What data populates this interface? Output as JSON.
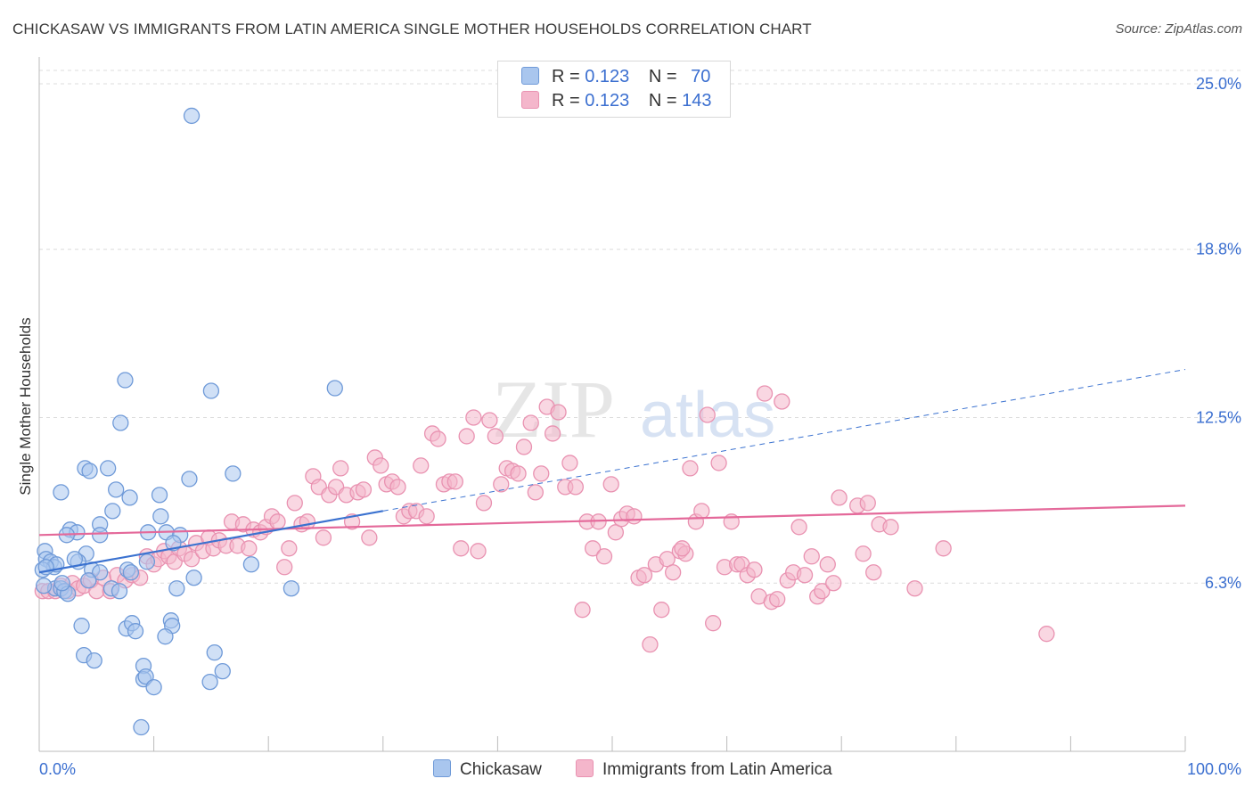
{
  "header": {
    "title": "CHICKASAW VS IMMIGRANTS FROM LATIN AMERICA SINGLE MOTHER HOUSEHOLDS CORRELATION CHART",
    "source": "Source: ZipAtlas.com"
  },
  "legend": {
    "series": [
      {
        "r_label": "R =",
        "r_value": "0.123",
        "n_label": "N =",
        "n_value": "70"
      },
      {
        "r_label": "R =",
        "r_value": "0.123",
        "n_label": "N =",
        "n_value": "143"
      }
    ]
  },
  "bottom_legend": {
    "items": [
      "Chickasaw",
      "Immigrants from Latin America"
    ]
  },
  "watermark": {
    "zip": "ZIP",
    "atlas": "atlas"
  },
  "colors": {
    "blue_fill": "#a9c6ee",
    "blue_stroke": "#6f9ad8",
    "blue_line": "#3b72d0",
    "pink_fill": "#f4b6cb",
    "pink_stroke": "#e992b1",
    "pink_line": "#e4699a",
    "axis_label": "#3b6fd0",
    "grid": "#dcdcdc"
  },
  "chart_data": {
    "type": "scatter",
    "title": "CHICKASAW VS IMMIGRANTS FROM LATIN AMERICA SINGLE MOTHER HOUSEHOLDS CORRELATION CHART",
    "xlabel": "",
    "ylabel": "Single Mother Households",
    "xlim": [
      0,
      100
    ],
    "ylim": [
      0,
      26
    ],
    "x_tick_labels": [
      "0.0%",
      "100.0%"
    ],
    "y_ticks": [
      6.3,
      12.5,
      18.8,
      25.0
    ],
    "y_tick_labels": [
      "6.3%",
      "12.5%",
      "18.8%",
      "25.0%"
    ],
    "series": [
      {
        "name": "Chickasaw",
        "r": 0.123,
        "n": 70,
        "trend": {
          "x0": 0,
          "y0": 6.7,
          "x1": 30,
          "y1": 9.0,
          "x_dash_end": 100,
          "y_dash_end": 14.3
        },
        "points": [
          [
            13.3,
            23.8
          ],
          [
            7.5,
            13.9
          ],
          [
            15.0,
            13.5
          ],
          [
            25.8,
            13.6
          ],
          [
            7.1,
            12.3
          ],
          [
            4.0,
            10.6
          ],
          [
            6.0,
            10.6
          ],
          [
            4.4,
            10.5
          ],
          [
            13.1,
            10.2
          ],
          [
            16.9,
            10.4
          ],
          [
            1.9,
            9.7
          ],
          [
            6.7,
            9.8
          ],
          [
            7.9,
            9.5
          ],
          [
            10.5,
            9.6
          ],
          [
            6.4,
            9.0
          ],
          [
            10.6,
            8.8
          ],
          [
            2.7,
            8.3
          ],
          [
            3.3,
            8.2
          ],
          [
            5.3,
            8.5
          ],
          [
            9.5,
            8.2
          ],
          [
            11.1,
            8.2
          ],
          [
            12.3,
            8.1
          ],
          [
            2.4,
            8.1
          ],
          [
            5.3,
            8.1
          ],
          [
            0.5,
            7.5
          ],
          [
            4.1,
            7.4
          ],
          [
            9.4,
            7.1
          ],
          [
            11.7,
            7.8
          ],
          [
            18.5,
            7.0
          ],
          [
            0.6,
            7.2
          ],
          [
            1.0,
            7.1
          ],
          [
            1.3,
            6.9
          ],
          [
            1.5,
            7.0
          ],
          [
            3.4,
            7.1
          ],
          [
            3.1,
            7.2
          ],
          [
            0.3,
            6.8
          ],
          [
            0.6,
            6.9
          ],
          [
            4.6,
            6.8
          ],
          [
            5.3,
            6.7
          ],
          [
            7.7,
            6.8
          ],
          [
            8.0,
            6.7
          ],
          [
            4.3,
            6.4
          ],
          [
            13.5,
            6.5
          ],
          [
            1.4,
            6.1
          ],
          [
            1.9,
            6.1
          ],
          [
            2.2,
            6.0
          ],
          [
            2.5,
            5.9
          ],
          [
            6.3,
            6.1
          ],
          [
            7.0,
            6.0
          ],
          [
            12.0,
            6.1
          ],
          [
            22.0,
            6.1
          ],
          [
            3.7,
            4.7
          ],
          [
            7.6,
            4.6
          ],
          [
            8.1,
            4.8
          ],
          [
            8.4,
            4.5
          ],
          [
            11.5,
            4.9
          ],
          [
            11.6,
            4.7
          ],
          [
            11.0,
            4.3
          ],
          [
            3.9,
            3.6
          ],
          [
            4.8,
            3.4
          ],
          [
            15.3,
            3.7
          ],
          [
            9.1,
            3.2
          ],
          [
            9.1,
            2.7
          ],
          [
            9.3,
            2.8
          ],
          [
            16.0,
            3.0
          ],
          [
            14.9,
            2.6
          ],
          [
            10.0,
            2.4
          ],
          [
            8.9,
            0.9
          ],
          [
            0.4,
            6.2
          ],
          [
            2.0,
            6.3
          ]
        ]
      },
      {
        "name": "Immigrants from Latin America",
        "r": 0.123,
        "n": 143,
        "trend": {
          "x0": 0,
          "y0": 8.1,
          "x1": 100,
          "y1": 9.2
        },
        "points": [
          [
            0.3,
            6.0
          ],
          [
            0.8,
            6.0
          ],
          [
            1.4,
            6.0
          ],
          [
            1.9,
            6.2
          ],
          [
            2.5,
            6.0
          ],
          [
            2.9,
            6.3
          ],
          [
            3.4,
            6.1
          ],
          [
            3.9,
            6.2
          ],
          [
            4.5,
            6.4
          ],
          [
            5.0,
            6.0
          ],
          [
            5.6,
            6.5
          ],
          [
            6.2,
            6.0
          ],
          [
            6.8,
            6.6
          ],
          [
            7.5,
            6.4
          ],
          [
            8.1,
            6.6
          ],
          [
            8.8,
            6.5
          ],
          [
            9.4,
            7.3
          ],
          [
            10.0,
            7.0
          ],
          [
            10.4,
            7.2
          ],
          [
            10.9,
            7.5
          ],
          [
            11.3,
            7.3
          ],
          [
            11.8,
            7.1
          ],
          [
            12.2,
            7.6
          ],
          [
            12.7,
            7.4
          ],
          [
            13.3,
            7.2
          ],
          [
            13.7,
            7.8
          ],
          [
            14.3,
            7.5
          ],
          [
            14.8,
            8.0
          ],
          [
            15.2,
            7.6
          ],
          [
            15.7,
            7.9
          ],
          [
            16.3,
            7.7
          ],
          [
            16.8,
            8.6
          ],
          [
            17.3,
            7.7
          ],
          [
            17.8,
            8.5
          ],
          [
            18.3,
            7.6
          ],
          [
            18.7,
            8.3
          ],
          [
            19.3,
            8.2
          ],
          [
            19.8,
            8.4
          ],
          [
            20.3,
            8.8
          ],
          [
            20.8,
            8.6
          ],
          [
            21.4,
            6.9
          ],
          [
            21.8,
            7.6
          ],
          [
            22.3,
            9.3
          ],
          [
            22.9,
            8.5
          ],
          [
            23.4,
            8.6
          ],
          [
            23.9,
            10.3
          ],
          [
            24.4,
            9.9
          ],
          [
            24.8,
            8.0
          ],
          [
            25.3,
            9.6
          ],
          [
            25.9,
            9.9
          ],
          [
            26.3,
            10.6
          ],
          [
            26.8,
            9.6
          ],
          [
            27.3,
            8.6
          ],
          [
            27.8,
            9.7
          ],
          [
            28.3,
            9.8
          ],
          [
            28.8,
            8.0
          ],
          [
            29.3,
            11.0
          ],
          [
            29.8,
            10.7
          ],
          [
            30.3,
            10.0
          ],
          [
            30.8,
            10.1
          ],
          [
            31.3,
            9.9
          ],
          [
            31.8,
            8.8
          ],
          [
            32.3,
            9.0
          ],
          [
            32.9,
            9.0
          ],
          [
            33.3,
            10.7
          ],
          [
            33.8,
            8.8
          ],
          [
            34.3,
            11.9
          ],
          [
            34.8,
            11.7
          ],
          [
            35.3,
            10.0
          ],
          [
            35.8,
            10.1
          ],
          [
            36.3,
            10.1
          ],
          [
            36.8,
            7.6
          ],
          [
            37.3,
            11.8
          ],
          [
            37.9,
            12.5
          ],
          [
            38.3,
            7.5
          ],
          [
            38.8,
            9.3
          ],
          [
            39.3,
            12.4
          ],
          [
            39.8,
            11.8
          ],
          [
            40.3,
            10.0
          ],
          [
            40.8,
            10.6
          ],
          [
            41.3,
            10.5
          ],
          [
            41.8,
            10.4
          ],
          [
            42.3,
            11.4
          ],
          [
            42.9,
            12.3
          ],
          [
            43.3,
            9.7
          ],
          [
            43.8,
            10.4
          ],
          [
            44.3,
            12.9
          ],
          [
            44.8,
            11.9
          ],
          [
            45.3,
            12.7
          ],
          [
            45.9,
            9.9
          ],
          [
            46.3,
            10.8
          ],
          [
            46.8,
            9.9
          ],
          [
            47.4,
            5.3
          ],
          [
            47.8,
            8.6
          ],
          [
            48.3,
            7.6
          ],
          [
            48.8,
            8.6
          ],
          [
            49.3,
            7.3
          ],
          [
            49.9,
            10.0
          ],
          [
            50.3,
            8.2
          ],
          [
            50.8,
            8.7
          ],
          [
            51.3,
            8.9
          ],
          [
            51.9,
            8.8
          ],
          [
            52.3,
            6.5
          ],
          [
            52.8,
            6.6
          ],
          [
            53.3,
            4.0
          ],
          [
            53.8,
            7.0
          ],
          [
            54.3,
            5.3
          ],
          [
            54.8,
            7.2
          ],
          [
            55.3,
            6.7
          ],
          [
            55.9,
            7.5
          ],
          [
            56.4,
            7.4
          ],
          [
            56.8,
            10.6
          ],
          [
            57.3,
            8.6
          ],
          [
            57.8,
            9.0
          ],
          [
            58.3,
            12.6
          ],
          [
            58.8,
            4.8
          ],
          [
            59.3,
            10.8
          ],
          [
            59.8,
            6.9
          ],
          [
            60.4,
            8.6
          ],
          [
            60.9,
            7.0
          ],
          [
            61.3,
            7.0
          ],
          [
            61.8,
            6.6
          ],
          [
            62.4,
            6.8
          ],
          [
            62.8,
            5.8
          ],
          [
            63.3,
            13.4
          ],
          [
            63.9,
            5.6
          ],
          [
            64.4,
            5.7
          ],
          [
            64.8,
            13.1
          ],
          [
            65.3,
            6.4
          ],
          [
            65.8,
            6.7
          ],
          [
            66.3,
            8.4
          ],
          [
            66.8,
            6.6
          ],
          [
            67.4,
            7.3
          ],
          [
            67.9,
            5.8
          ],
          [
            68.3,
            6.0
          ],
          [
            68.8,
            7.0
          ],
          [
            69.3,
            6.3
          ],
          [
            69.8,
            9.5
          ],
          [
            71.4,
            9.2
          ],
          [
            71.9,
            7.4
          ],
          [
            72.3,
            9.3
          ],
          [
            72.8,
            6.7
          ],
          [
            73.3,
            8.5
          ],
          [
            76.4,
            6.1
          ],
          [
            78.9,
            7.6
          ],
          [
            87.9,
            4.4
          ],
          [
            74.3,
            8.4
          ],
          [
            56.1,
            7.6
          ]
        ]
      }
    ]
  }
}
